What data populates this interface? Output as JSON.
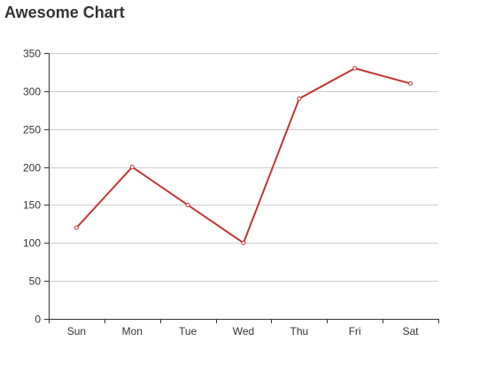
{
  "chart_data": {
    "type": "line",
    "title": "Awesome Chart",
    "categories": [
      "Sun",
      "Mon",
      "Tue",
      "Wed",
      "Thu",
      "Fri",
      "Sat"
    ],
    "series": [
      {
        "values": [
          120,
          200,
          150,
          100,
          290,
          330,
          310
        ],
        "color": "#c23531"
      }
    ],
    "ylim": [
      0,
      350
    ],
    "yticks": [
      0,
      50,
      100,
      150,
      200,
      250,
      300,
      350
    ],
    "xlabel": "",
    "ylabel": "",
    "grid": true,
    "legend": "none"
  }
}
